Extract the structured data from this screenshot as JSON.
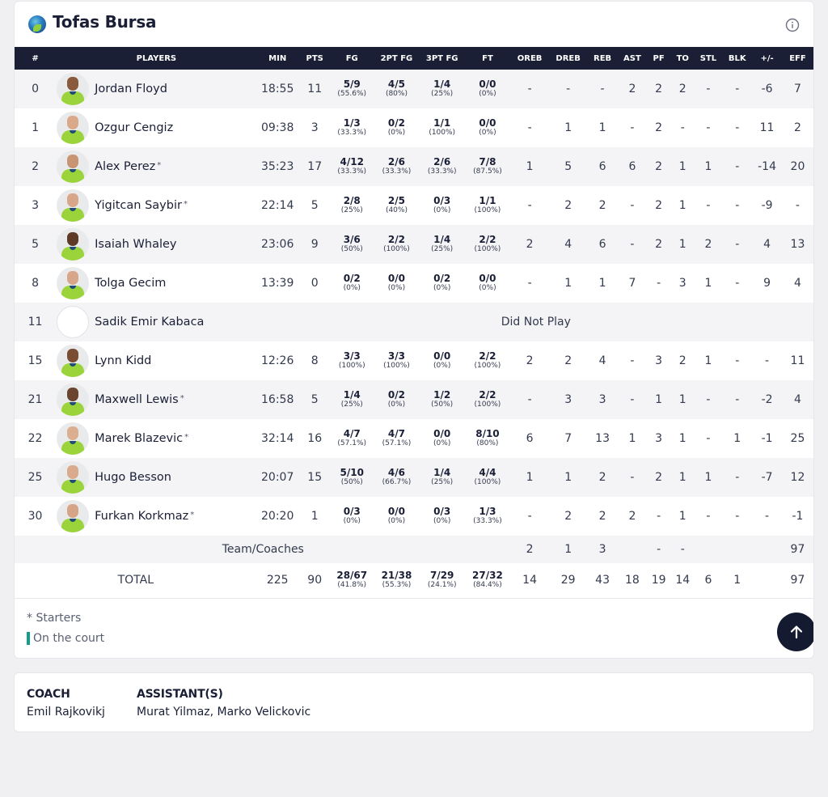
{
  "team": {
    "name": "Tofas Bursa",
    "logo_icon": "tofas-logo-icon",
    "info_icon": "info-icon"
  },
  "columns": [
    "#",
    "PLAYERS",
    "MIN",
    "PTS",
    "FG",
    "2PT FG",
    "3PT FG",
    "FT",
    "OREB",
    "DREB",
    "REB",
    "AST",
    "PF",
    "TO",
    "STL",
    "BLK",
    "+/-",
    "EFF"
  ],
  "players": [
    {
      "num": "0",
      "name": "Jordan Floyd",
      "starter": "",
      "min": "18:55",
      "pts": "11",
      "fg": "5/9",
      "fg_pct": "(55.6%)",
      "fg2": "4/5",
      "fg2_pct": "(80%)",
      "fg3": "1/4",
      "fg3_pct": "(25%)",
      "ft": "0/0",
      "ft_pct": "(0%)",
      "oreb": "-",
      "dreb": "-",
      "reb": "-",
      "ast": "2",
      "pf": "2",
      "to": "2",
      "stl": "-",
      "blk": "-",
      "pm": "-6",
      "eff": "7",
      "skin": "#8a5a3c"
    },
    {
      "num": "1",
      "name": "Ozgur Cengiz",
      "starter": "",
      "min": "09:38",
      "pts": "3",
      "fg": "1/3",
      "fg_pct": "(33.3%)",
      "fg2": "0/2",
      "fg2_pct": "(0%)",
      "fg3": "1/1",
      "fg3_pct": "(100%)",
      "ft": "0/0",
      "ft_pct": "(0%)",
      "oreb": "-",
      "dreb": "1",
      "reb": "1",
      "ast": "-",
      "pf": "2",
      "to": "-",
      "stl": "-",
      "blk": "-",
      "pm": "11",
      "eff": "2",
      "skin": "#d9a98a"
    },
    {
      "num": "2",
      "name": "Alex Perez",
      "starter": "*",
      "min": "35:23",
      "pts": "17",
      "fg": "4/12",
      "fg_pct": "(33.3%)",
      "fg2": "2/6",
      "fg2_pct": "(33.3%)",
      "fg3": "2/6",
      "fg3_pct": "(33.3%)",
      "ft": "7/8",
      "ft_pct": "(87.5%)",
      "oreb": "1",
      "dreb": "5",
      "reb": "6",
      "ast": "6",
      "pf": "2",
      "to": "1",
      "stl": "1",
      "blk": "-",
      "pm": "-14",
      "eff": "20",
      "skin": "#c99474"
    },
    {
      "num": "3",
      "name": "Yigitcan Saybir",
      "starter": "*",
      "min": "22:14",
      "pts": "5",
      "fg": "2/8",
      "fg_pct": "(25%)",
      "fg2": "2/5",
      "fg2_pct": "(40%)",
      "fg3": "0/3",
      "fg3_pct": "(0%)",
      "ft": "1/1",
      "ft_pct": "(100%)",
      "oreb": "-",
      "dreb": "2",
      "reb": "2",
      "ast": "-",
      "pf": "2",
      "to": "1",
      "stl": "-",
      "blk": "-",
      "pm": "-9",
      "eff": "-",
      "skin": "#d8a688"
    },
    {
      "num": "5",
      "name": "Isaiah Whaley",
      "starter": "",
      "min": "23:06",
      "pts": "9",
      "fg": "3/6",
      "fg_pct": "(50%)",
      "fg2": "2/2",
      "fg2_pct": "(100%)",
      "fg3": "1/4",
      "fg3_pct": "(25%)",
      "ft": "2/2",
      "ft_pct": "(100%)",
      "oreb": "2",
      "dreb": "4",
      "reb": "6",
      "ast": "-",
      "pf": "2",
      "to": "1",
      "stl": "2",
      "blk": "-",
      "pm": "4",
      "eff": "13",
      "skin": "#5e3a26"
    },
    {
      "num": "8",
      "name": "Tolga Gecim",
      "starter": "",
      "min": "13:39",
      "pts": "0",
      "fg": "0/2",
      "fg_pct": "(0%)",
      "fg2": "0/0",
      "fg2_pct": "(0%)",
      "fg3": "0/2",
      "fg3_pct": "(0%)",
      "ft": "0/0",
      "ft_pct": "(0%)",
      "oreb": "-",
      "dreb": "1",
      "reb": "1",
      "ast": "7",
      "pf": "-",
      "to": "3",
      "stl": "1",
      "blk": "-",
      "pm": "9",
      "eff": "4",
      "skin": "#d8a688"
    },
    {
      "num": "11",
      "name": "Sadik Emir Kabaca",
      "starter": "",
      "dnp": "Did Not Play"
    },
    {
      "num": "15",
      "name": "Lynn Kidd",
      "starter": "",
      "min": "12:26",
      "pts": "8",
      "fg": "3/3",
      "fg_pct": "(100%)",
      "fg2": "3/3",
      "fg2_pct": "(100%)",
      "fg3": "0/0",
      "fg3_pct": "(0%)",
      "ft": "2/2",
      "ft_pct": "(100%)",
      "oreb": "2",
      "dreb": "2",
      "reb": "4",
      "ast": "-",
      "pf": "3",
      "to": "2",
      "stl": "1",
      "blk": "-",
      "pm": "-",
      "eff": "11",
      "skin": "#7a4d33"
    },
    {
      "num": "21",
      "name": "Maxwell Lewis",
      "starter": "*",
      "min": "16:58",
      "pts": "5",
      "fg": "1/4",
      "fg_pct": "(25%)",
      "fg2": "0/2",
      "fg2_pct": "(0%)",
      "fg3": "1/2",
      "fg3_pct": "(50%)",
      "ft": "2/2",
      "ft_pct": "(100%)",
      "oreb": "-",
      "dreb": "3",
      "reb": "3",
      "ast": "-",
      "pf": "1",
      "to": "1",
      "stl": "-",
      "blk": "-",
      "pm": "-2",
      "eff": "4",
      "skin": "#6b4430"
    },
    {
      "num": "22",
      "name": "Marek Blazevic",
      "starter": "*",
      "min": "32:14",
      "pts": "16",
      "fg": "4/7",
      "fg_pct": "(57.1%)",
      "fg2": "4/7",
      "fg2_pct": "(57.1%)",
      "fg3": "0/0",
      "fg3_pct": "(0%)",
      "ft": "8/10",
      "ft_pct": "(80%)",
      "oreb": "6",
      "dreb": "7",
      "reb": "13",
      "ast": "1",
      "pf": "3",
      "to": "1",
      "stl": "-",
      "blk": "1",
      "pm": "-1",
      "eff": "25",
      "skin": "#dcae90"
    },
    {
      "num": "25",
      "name": "Hugo Besson",
      "starter": "",
      "min": "20:07",
      "pts": "15",
      "fg": "5/10",
      "fg_pct": "(50%)",
      "fg2": "4/6",
      "fg2_pct": "(66.7%)",
      "fg3": "1/4",
      "fg3_pct": "(25%)",
      "ft": "4/4",
      "ft_pct": "(100%)",
      "oreb": "1",
      "dreb": "1",
      "reb": "2",
      "ast": "-",
      "pf": "2",
      "to": "1",
      "stl": "1",
      "blk": "-",
      "pm": "-7",
      "eff": "12",
      "skin": "#d9aa8c"
    },
    {
      "num": "30",
      "name": "Furkan Korkmaz",
      "starter": "*",
      "min": "20:20",
      "pts": "1",
      "fg": "0/3",
      "fg_pct": "(0%)",
      "fg2": "0/0",
      "fg2_pct": "(0%)",
      "fg3": "0/3",
      "fg3_pct": "(0%)",
      "ft": "1/3",
      "ft_pct": "(33.3%)",
      "oreb": "-",
      "dreb": "2",
      "reb": "2",
      "ast": "2",
      "pf": "-",
      "to": "1",
      "stl": "-",
      "blk": "-",
      "pm": "-",
      "eff": "-1",
      "skin": "#d6a486"
    }
  ],
  "team_row": {
    "label": "Team/Coaches",
    "oreb": "2",
    "dreb": "1",
    "reb": "3",
    "ast": "",
    "pf": "-",
    "to": "-",
    "stl": "",
    "blk": "",
    "pm": "",
    "eff": "97"
  },
  "totals": {
    "label": "TOTAL",
    "min": "225",
    "pts": "90",
    "fg": "28/67",
    "fg_pct": "(41.8%)",
    "fg2": "21/38",
    "fg2_pct": "(55.3%)",
    "fg3": "7/29",
    "fg3_pct": "(24.1%)",
    "ft": "27/32",
    "ft_pct": "(84.4%)",
    "oreb": "14",
    "dreb": "29",
    "reb": "43",
    "ast": "18",
    "pf": "19",
    "to": "14",
    "stl": "6",
    "blk": "1",
    "pm": "",
    "eff": "97"
  },
  "legend": {
    "starters": "* Starters",
    "on_court": "On the court",
    "on_court_color": "#149c8c"
  },
  "scroll_top_icon": "arrow-up-icon",
  "coaching": {
    "coach_label": "COACH",
    "coach": "Emil Rajkovikj",
    "assistants_label": "ASSISTANT(S)",
    "assistants": "Murat Yilmaz, Marko Velickovic"
  }
}
